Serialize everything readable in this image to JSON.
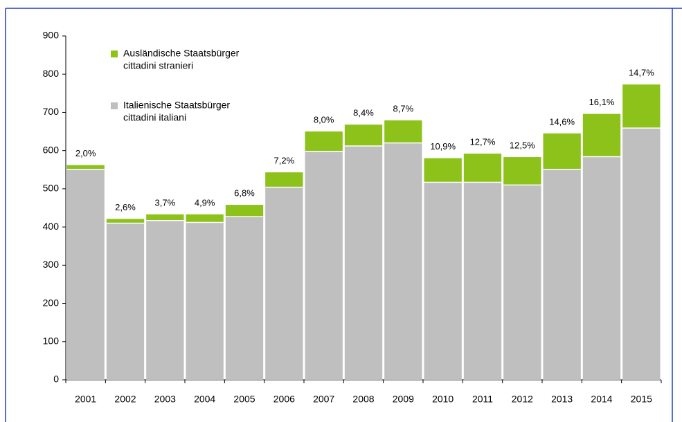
{
  "chart_data": {
    "type": "stacked_bar",
    "categories": [
      "2001",
      "2002",
      "2003",
      "2004",
      "2005",
      "2006",
      "2007",
      "2008",
      "2009",
      "2010",
      "2011",
      "2012",
      "2013",
      "2014",
      "2015"
    ],
    "series": [
      {
        "name": [
          "Italienische Staatsbürger",
          "cittadini italiani"
        ],
        "color": "#bfbfbf",
        "values": [
          551,
          410,
          417,
          412,
          427,
          504,
          598,
          612,
          620,
          517,
          517,
          510,
          551,
          584,
          659
        ]
      },
      {
        "name": [
          "Ausländische Staatsbürger",
          "cittadini stranieri"
        ],
        "color": "#8cc21a",
        "values": [
          11,
          11,
          16,
          21,
          31,
          39,
          52,
          56,
          59,
          63,
          75,
          73,
          94,
          112,
          114
        ]
      }
    ],
    "annotations": {
      "values": [
        2.0,
        2.6,
        3.7,
        4.9,
        6.8,
        7.2,
        8.0,
        8.4,
        8.7,
        10.9,
        12.7,
        12.5,
        14.6,
        16.1,
        14.7
      ],
      "value_labels": [
        "2,0%",
        "2,6%",
        "3,7%",
        "4,9%",
        "6,8%",
        "7,2%",
        "8,0%",
        "8,4%",
        "8,7%",
        "10,9%",
        "12,7%",
        "12,5%",
        "14,6%",
        "16,1%",
        "14,7%"
      ]
    },
    "ylim": [
      0,
      900
    ],
    "yticks": [
      0,
      100,
      200,
      300,
      400,
      500,
      600,
      700,
      800,
      900
    ],
    "grid": false
  }
}
